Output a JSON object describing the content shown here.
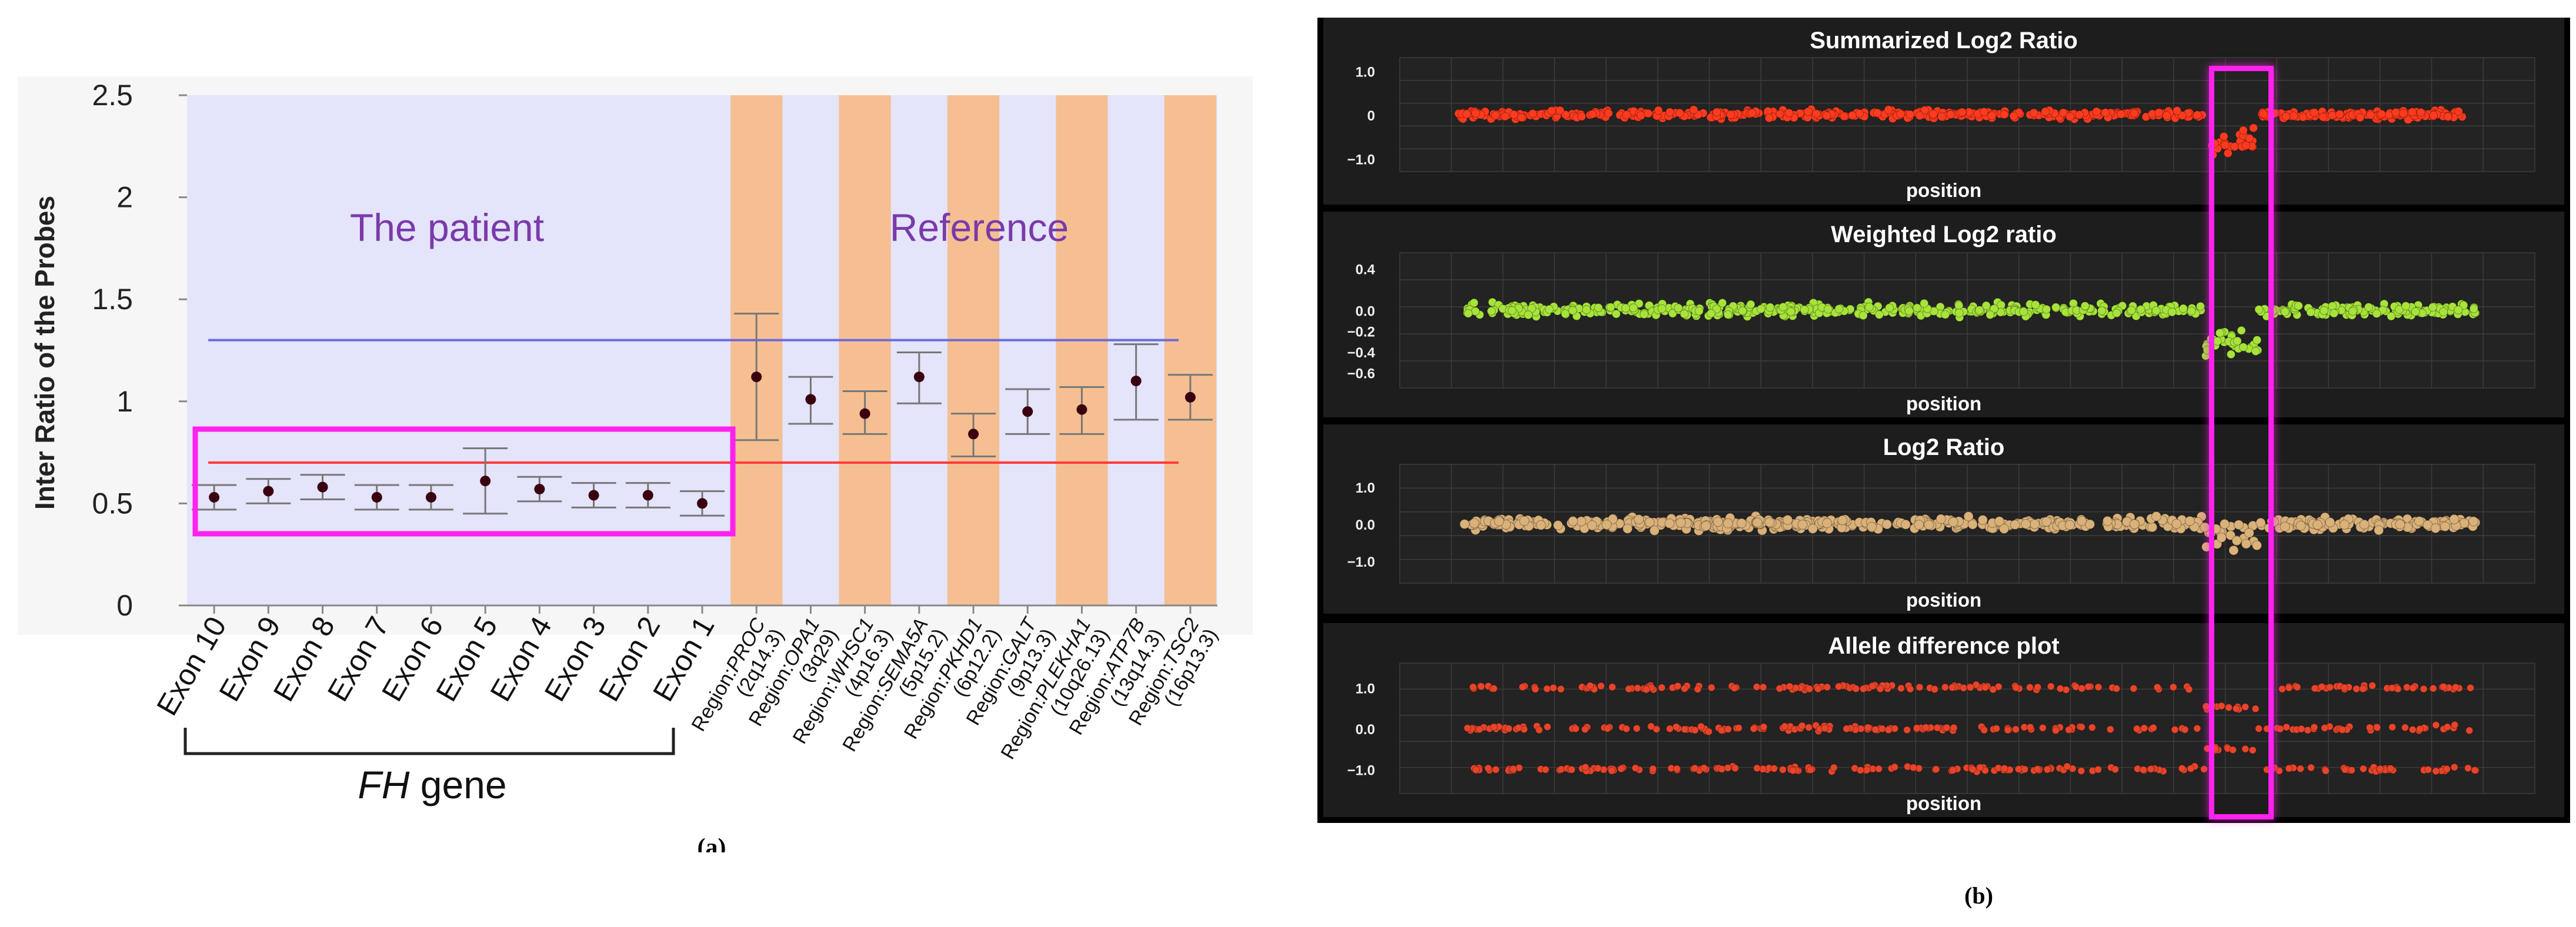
{
  "figure": {
    "panel_a_caption": "(a)",
    "panel_b_caption": "(b)"
  },
  "colors": {
    "patient_bg": "#e4e4fb",
    "reference_band": "#f5bf92",
    "upper_line": "#6a6add",
    "lower_line": "#ff3b3b",
    "highlight": "#ff22ee",
    "label_purple": "#7a3aaa",
    "summarized_points": "#ff3b1f",
    "weighted_points": "#a7e33a",
    "log2_points": "#d9b179",
    "allele_points": "#e8442a"
  },
  "chart_data": [
    {
      "type": "scatter",
      "subtype": "error-bar",
      "ylabel": "Inter Ratio of the Probes",
      "ylim": [
        0,
        2.5
      ],
      "yticks": [
        "0",
        "0.5",
        "1",
        "1.5",
        "2",
        "2.5"
      ],
      "categories": [
        {
          "label": "Exon 10",
          "value": 0.53,
          "low": 0.47,
          "high": 0.59
        },
        {
          "label": "Exon 9",
          "value": 0.56,
          "low": 0.5,
          "high": 0.62
        },
        {
          "label": "Exon 8",
          "value": 0.58,
          "low": 0.52,
          "high": 0.64
        },
        {
          "label": "Exon 7",
          "value": 0.53,
          "low": 0.47,
          "high": 0.59
        },
        {
          "label": "Exon 6",
          "value": 0.53,
          "low": 0.47,
          "high": 0.59
        },
        {
          "label": "Exon 5",
          "value": 0.61,
          "low": 0.45,
          "high": 0.77
        },
        {
          "label": "Exon 4",
          "value": 0.57,
          "low": 0.51,
          "high": 0.63
        },
        {
          "label": "Exon 3",
          "value": 0.54,
          "low": 0.48,
          "high": 0.6
        },
        {
          "label": "Exon 2",
          "value": 0.54,
          "low": 0.48,
          "high": 0.6
        },
        {
          "label": "Exon 1",
          "value": 0.5,
          "low": 0.44,
          "high": 0.56
        },
        {
          "label": "Region:PROC (2q14.3)",
          "value": 1.12,
          "low": 0.81,
          "high": 1.43
        },
        {
          "label": "Region:OPA1 (3q29)",
          "value": 1.01,
          "low": 0.89,
          "high": 1.12
        },
        {
          "label": "Region:WHSC1 (4p16.3)",
          "value": 0.94,
          "low": 0.84,
          "high": 1.05
        },
        {
          "label": "Region:SEMA5A (5p15.2)",
          "value": 1.12,
          "low": 0.99,
          "high": 1.24
        },
        {
          "label": "Region:PKHD1 (6p12.2)",
          "value": 0.84,
          "low": 0.73,
          "high": 0.94
        },
        {
          "label": "Region:GALT (9p13.3)",
          "value": 0.95,
          "low": 0.84,
          "high": 1.06
        },
        {
          "label": "Region:PLEKHA1 (10q26.13)",
          "value": 0.96,
          "low": 0.84,
          "high": 1.07
        },
        {
          "label": "Region:ATP7B (13q14.3)",
          "value": 1.1,
          "low": 0.91,
          "high": 1.28
        },
        {
          "label": "Region:TSC2 (16p13.3)",
          "value": 1.02,
          "low": 0.91,
          "high": 1.13
        }
      ],
      "reference_lines": [
        1.3,
        0.7
      ],
      "group_labels": {
        "patient": "The patient",
        "reference": "Reference"
      },
      "gene_label": {
        "gene": "FH",
        "suffix": "gene"
      }
    },
    {
      "type": "scatter",
      "title": "Summarized Log2 Ratio",
      "xlabel": "position",
      "ylim": [
        -1.3,
        1.3
      ],
      "yticks": [
        1.0,
        0,
        -1.0
      ],
      "ytick_labels": [
        "1.0",
        "0",
        "−1.0"
      ],
      "baseline": 0,
      "spread": 0.09,
      "deleted_region_mean": -0.6,
      "deleted_region_spread": 0.25
    },
    {
      "type": "scatter",
      "title": "Weighted Log2 ratio",
      "xlabel": "position",
      "ylim": [
        -0.75,
        0.55
      ],
      "yticks": [
        0.4,
        0.0,
        -0.2,
        -0.4,
        -0.6
      ],
      "ytick_labels": [
        "0.4",
        "0.0",
        "−0.2",
        "−0.4",
        "−0.6"
      ],
      "baseline": 0,
      "spread": 0.06,
      "deleted_region_mean": -0.3,
      "deleted_region_spread": 0.12
    },
    {
      "type": "scatter",
      "title": "Log2 Ratio",
      "xlabel": "position",
      "ylim": [
        -1.6,
        1.6
      ],
      "yticks": [
        1.0,
        0.0,
        -1.0
      ],
      "ytick_labels": [
        "1.0",
        "0.0",
        "−1.0"
      ],
      "baseline": 0,
      "spread": 0.14,
      "deleted_region_mean": -0.3,
      "deleted_region_spread": 0.35
    },
    {
      "type": "scatter",
      "title": "Allele difference plot",
      "xlabel": "position",
      "ylim": [
        -1.6,
        1.6
      ],
      "yticks": [
        1.0,
        0.0,
        -1.0
      ],
      "ytick_labels": [
        "1.0",
        "0.0",
        "−1.0"
      ],
      "bands": [
        1.0,
        0.0,
        -1.0
      ],
      "spread": 0.06,
      "deleted_region_bands": [
        0.5,
        -0.5
      ]
    }
  ]
}
